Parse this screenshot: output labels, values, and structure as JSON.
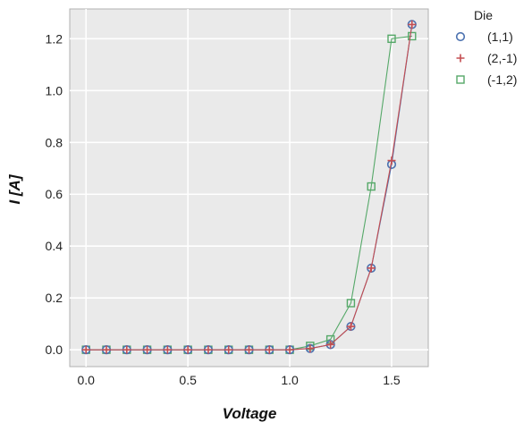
{
  "chart_data": {
    "type": "line",
    "xlabel": "Voltage",
    "ylabel": "I [A]",
    "xlim": [
      -0.08,
      1.68
    ],
    "ylim": [
      -0.065,
      1.315
    ],
    "xticks": [
      0.0,
      0.5,
      1.0,
      1.5
    ],
    "xtick_labels": [
      "0.0",
      "0.5",
      "1.0",
      "1.5"
    ],
    "yticks": [
      0.0,
      0.2,
      0.4,
      0.6,
      0.8,
      1.0,
      1.2
    ],
    "ytick_labels": [
      "0.0",
      "0.2",
      "0.4",
      "0.6",
      "0.8",
      "1.0",
      "1.2"
    ],
    "grid": true,
    "legend_title": "Die",
    "legend_position": "outside-top-right",
    "x": [
      0.0,
      0.1,
      0.2,
      0.3,
      0.4,
      0.5,
      0.6,
      0.7,
      0.8,
      0.9,
      1.0,
      1.1,
      1.2,
      1.3,
      1.4,
      1.5,
      1.6
    ],
    "series": [
      {
        "name": "(1,1)",
        "marker": "circle",
        "color": "#4c72b0",
        "values": [
          0.0,
          0.0,
          0.0,
          0.0,
          0.0,
          0.0,
          0.0,
          0.0,
          0.0,
          0.0,
          0.0,
          0.005,
          0.02,
          0.09,
          0.315,
          0.715,
          1.255
        ]
      },
      {
        "name": "(2,-1)",
        "marker": "plus",
        "color": "#c44e52",
        "values": [
          0.0,
          0.0,
          0.0,
          0.0,
          0.0,
          0.0,
          0.0,
          0.0,
          0.0,
          0.0,
          0.0,
          0.005,
          0.02,
          0.09,
          0.315,
          0.73,
          1.255
        ]
      },
      {
        "name": "(-1,2)",
        "marker": "square",
        "color": "#55a868",
        "values": [
          0.0,
          0.0,
          0.0,
          0.0,
          0.0,
          0.0,
          0.0,
          0.0,
          0.0,
          0.0,
          0.0,
          0.015,
          0.04,
          0.18,
          0.63,
          1.2,
          1.21
        ]
      }
    ]
  }
}
